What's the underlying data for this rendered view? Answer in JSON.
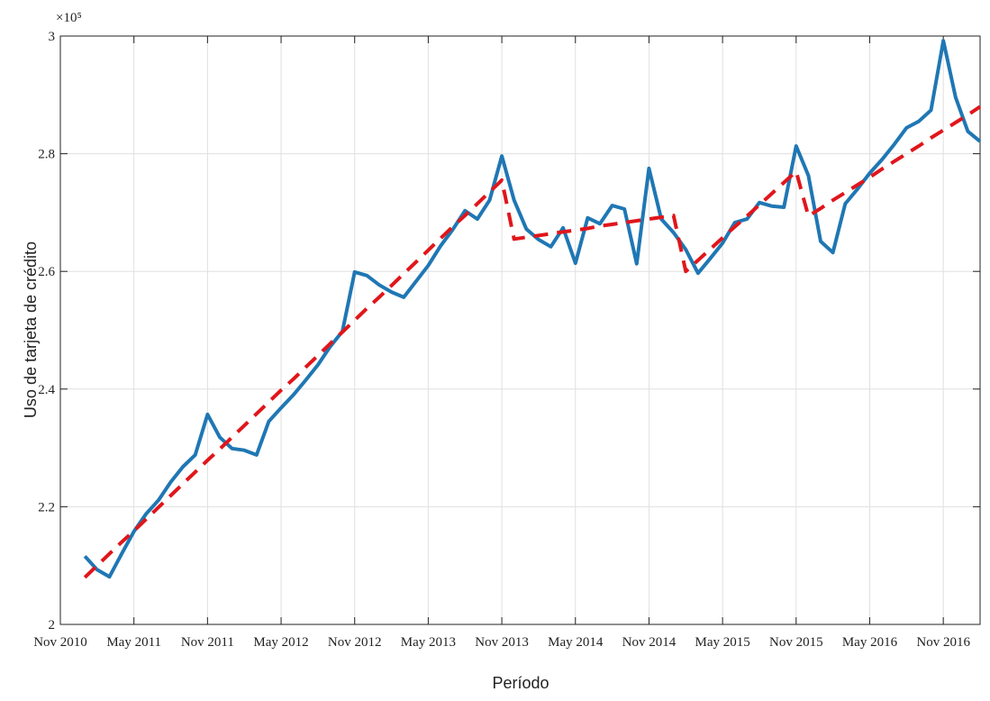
{
  "chart_data": {
    "type": "line",
    "x_label": "Período",
    "y_label": "Uso de tarjeta de crédito",
    "y_multiplier": "×10⁵",
    "x": [
      "2011-01",
      "2011-02",
      "2011-03",
      "2011-04",
      "2011-05",
      "2011-06",
      "2011-07",
      "2011-08",
      "2011-09",
      "2011-10",
      "2011-11",
      "2011-12",
      "2012-01",
      "2012-02",
      "2012-03",
      "2012-04",
      "2012-05",
      "2012-06",
      "2012-07",
      "2012-08",
      "2012-09",
      "2012-10",
      "2012-11",
      "2012-12",
      "2013-01",
      "2013-02",
      "2013-03",
      "2013-04",
      "2013-05",
      "2013-06",
      "2013-07",
      "2013-08",
      "2013-09",
      "2013-10",
      "2013-11",
      "2013-12",
      "2014-01",
      "2014-02",
      "2014-03",
      "2014-04",
      "2014-05",
      "2014-06",
      "2014-07",
      "2014-08",
      "2014-09",
      "2014-10",
      "2014-11",
      "2014-12",
      "2015-01",
      "2015-02",
      "2015-03",
      "2015-04",
      "2015-05",
      "2015-06",
      "2015-07",
      "2015-08",
      "2015-09",
      "2015-10",
      "2015-11",
      "2015-12",
      "2016-01",
      "2016-02",
      "2016-03",
      "2016-04",
      "2016-05",
      "2016-06",
      "2016-07",
      "2016-08",
      "2016-09",
      "2016-10",
      "2016-11",
      "2016-12",
      "2017-01",
      "2017-02"
    ],
    "series": [
      {
        "color": "#1f77b4",
        "dash": false,
        "values": [
          2.116,
          2.093,
          2.081,
          2.12,
          2.158,
          2.188,
          2.211,
          2.242,
          2.268,
          2.288,
          2.357,
          2.318,
          2.299,
          2.296,
          2.288,
          2.345,
          2.368,
          2.39,
          2.415,
          2.441,
          2.472,
          2.498,
          2.599,
          2.593,
          2.577,
          2.565,
          2.556,
          2.583,
          2.61,
          2.643,
          2.671,
          2.703,
          2.689,
          2.721,
          2.796,
          2.721,
          2.672,
          2.654,
          2.642,
          2.674,
          2.614,
          2.691,
          2.681,
          2.712,
          2.706,
          2.613,
          2.775,
          2.689,
          2.666,
          2.637,
          2.597,
          2.622,
          2.648,
          2.683,
          2.689,
          2.717,
          2.711,
          2.709,
          2.813,
          2.763,
          2.651,
          2.632,
          2.715,
          2.74,
          2.767,
          2.79,
          2.816,
          2.844,
          2.855,
          2.874,
          2.992,
          2.896,
          2.838,
          2.821
        ]
      },
      {
        "color": "#e0161b",
        "dash": true,
        "values": [
          2.08,
          2.1,
          2.12,
          2.14,
          2.159,
          2.179,
          2.199,
          2.219,
          2.239,
          2.259,
          2.279,
          2.298,
          2.318,
          2.338,
          2.358,
          2.378,
          2.398,
          2.417,
          2.437,
          2.457,
          2.477,
          2.497,
          2.517,
          2.537,
          2.556,
          2.576,
          2.596,
          2.616,
          2.636,
          2.656,
          2.676,
          2.695,
          2.715,
          2.735,
          2.755,
          2.655,
          2.658,
          2.661,
          2.664,
          2.667,
          2.67,
          2.673,
          2.677,
          2.68,
          2.683,
          2.686,
          2.689,
          2.692,
          2.695,
          2.6,
          2.619,
          2.638,
          2.657,
          2.676,
          2.694,
          2.713,
          2.732,
          2.751,
          2.77,
          2.694,
          2.707,
          2.721,
          2.734,
          2.747,
          2.76,
          2.774,
          2.787,
          2.8,
          2.813,
          2.827,
          2.84,
          2.853,
          2.866,
          2.88
        ]
      }
    ],
    "xlim": [
      "2010-11",
      "2017-02"
    ],
    "xticks": [
      {
        "value": "2010-11",
        "label": "Nov 2010"
      },
      {
        "value": "2011-05",
        "label": "May 2011"
      },
      {
        "value": "2011-11",
        "label": "Nov 2011"
      },
      {
        "value": "2012-05",
        "label": "May 2012"
      },
      {
        "value": "2012-11",
        "label": "Nov 2012"
      },
      {
        "value": "2013-05",
        "label": "May 2013"
      },
      {
        "value": "2013-11",
        "label": "Nov 2013"
      },
      {
        "value": "2014-05",
        "label": "May 2014"
      },
      {
        "value": "2014-11",
        "label": "Nov 2014"
      },
      {
        "value": "2015-05",
        "label": "May 2015"
      },
      {
        "value": "2015-11",
        "label": "Nov 2015"
      },
      {
        "value": "2016-05",
        "label": "May 2016"
      },
      {
        "value": "2016-11",
        "label": "Nov 2016"
      }
    ],
    "ylim": [
      2,
      3
    ],
    "yticks": [
      2,
      2.2,
      2.4,
      2.6,
      2.8,
      3
    ],
    "grid": true
  }
}
